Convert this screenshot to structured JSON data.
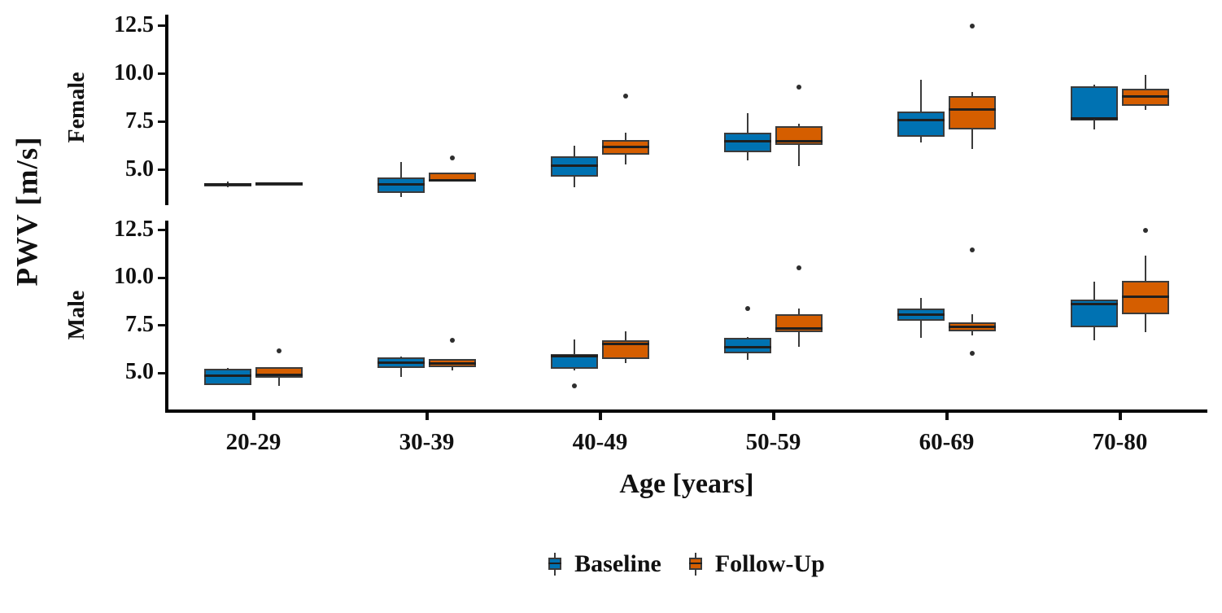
{
  "figure": {
    "y_axis_title": "PWV [m/s]",
    "x_axis_title": "Age [years]",
    "colors": {
      "baseline": "#0072B2",
      "followup": "#D55E00",
      "stroke": "#3b3b3b",
      "median": "#1f1f1f",
      "axis": "#000000",
      "outlier": "#2e2e2e"
    },
    "legend": [
      {
        "label": "Baseline",
        "color": "#0072B2"
      },
      {
        "label": "Follow-Up",
        "color": "#D55E00"
      }
    ]
  },
  "chart_data": {
    "type": "boxplot",
    "title": "",
    "xlabel": "Age [years]",
    "ylabel": "PWV [m/s]",
    "categories": [
      "20-29",
      "30-39",
      "40-49",
      "50-59",
      "60-69",
      "70-80"
    ],
    "series_names": [
      "Baseline",
      "Follow-Up"
    ],
    "y_ticks": [
      12.5,
      10.0,
      7.5,
      5.0
    ],
    "y_tick_labels": [
      "12.5",
      "10.0",
      "7.5",
      "5.0"
    ],
    "grid": false,
    "legend_position": "bottom",
    "facets": [
      {
        "label": "Female",
        "groups": [
          {
            "age": "20-29",
            "baseline": {
              "whisker_low": 4.1,
              "q1": 4.2,
              "median": 4.25,
              "q3": 4.3,
              "whisker_high": 4.4,
              "outliers": []
            },
            "followup": {
              "whisker_low": 4.25,
              "q1": 4.25,
              "median": 4.3,
              "q3": 4.35,
              "whisker_high": 4.35,
              "outliers": []
            }
          },
          {
            "age": "30-39",
            "baseline": {
              "whisker_low": 3.6,
              "q1": 3.8,
              "median": 4.25,
              "q3": 4.6,
              "whisker_high": 5.4,
              "outliers": []
            },
            "followup": {
              "whisker_low": 4.4,
              "q1": 4.4,
              "median": 4.45,
              "q3": 4.85,
              "whisker_high": 4.85,
              "outliers": [
                5.65
              ]
            }
          },
          {
            "age": "40-49",
            "baseline": {
              "whisker_low": 4.1,
              "q1": 4.65,
              "median": 5.25,
              "q3": 5.7,
              "whisker_high": 6.25,
              "outliers": []
            },
            "followup": {
              "whisker_low": 5.3,
              "q1": 5.8,
              "median": 6.2,
              "q3": 6.55,
              "whisker_high": 6.95,
              "outliers": [
                8.85
              ]
            }
          },
          {
            "age": "50-59",
            "baseline": {
              "whisker_low": 5.5,
              "q1": 5.95,
              "median": 6.5,
              "q3": 6.95,
              "whisker_high": 7.95,
              "outliers": []
            },
            "followup": {
              "whisker_low": 5.2,
              "q1": 6.3,
              "median": 6.5,
              "q3": 7.3,
              "whisker_high": 7.4,
              "outliers": [
                9.3
              ]
            }
          },
          {
            "age": "60-69",
            "baseline": {
              "whisker_low": 6.45,
              "q1": 6.75,
              "median": 7.6,
              "q3": 8.05,
              "whisker_high": 9.7,
              "outliers": []
            },
            "followup": {
              "whisker_low": 6.1,
              "q1": 7.1,
              "median": 8.15,
              "q3": 8.85,
              "whisker_high": 9.05,
              "outliers": [
                12.5
              ]
            }
          },
          {
            "age": "70-80",
            "baseline": {
              "whisker_low": 7.1,
              "q1": 7.6,
              "median": 7.7,
              "q3": 9.35,
              "whisker_high": 9.45,
              "outliers": []
            },
            "followup": {
              "whisker_low": 8.15,
              "q1": 8.35,
              "median": 8.85,
              "q3": 9.25,
              "whisker_high": 9.95,
              "outliers": []
            }
          }
        ]
      },
      {
        "label": "Male",
        "groups": [
          {
            "age": "20-29",
            "baseline": {
              "whisker_low": 4.35,
              "q1": 4.35,
              "median": 4.85,
              "q3": 5.2,
              "whisker_high": 5.25,
              "outliers": []
            },
            "followup": {
              "whisker_low": 4.3,
              "q1": 4.75,
              "median": 4.9,
              "q3": 5.3,
              "whisker_high": 5.3,
              "outliers": [
                6.15
              ]
            }
          },
          {
            "age": "30-39",
            "baseline": {
              "whisker_low": 4.8,
              "q1": 5.25,
              "median": 5.55,
              "q3": 5.8,
              "whisker_high": 5.85,
              "outliers": []
            },
            "followup": {
              "whisker_low": 5.15,
              "q1": 5.3,
              "median": 5.5,
              "q3": 5.75,
              "whisker_high": 5.75,
              "outliers": [
                6.7
              ]
            }
          },
          {
            "age": "40-49",
            "baseline": {
              "whisker_low": 5.15,
              "q1": 5.2,
              "median": 5.9,
              "q3": 6.0,
              "whisker_high": 6.75,
              "outliers": [
                4.3
              ]
            },
            "followup": {
              "whisker_low": 5.5,
              "q1": 5.75,
              "median": 6.5,
              "q3": 6.7,
              "whisker_high": 7.2,
              "outliers": []
            }
          },
          {
            "age": "50-59",
            "baseline": {
              "whisker_low": 5.7,
              "q1": 6.05,
              "median": 6.35,
              "q3": 6.85,
              "whisker_high": 6.9,
              "outliers": [
                8.4
              ]
            },
            "followup": {
              "whisker_low": 6.35,
              "q1": 7.15,
              "median": 7.35,
              "q3": 8.1,
              "whisker_high": 8.4,
              "outliers": [
                10.5
              ]
            }
          },
          {
            "age": "60-69",
            "baseline": {
              "whisker_low": 6.85,
              "q1": 7.75,
              "median": 8.05,
              "q3": 8.4,
              "whisker_high": 8.95,
              "outliers": []
            },
            "followup": {
              "whisker_low": 6.95,
              "q1": 7.2,
              "median": 7.4,
              "q3": 7.65,
              "whisker_high": 8.1,
              "outliers": [
                11.45,
                6.05
              ]
            }
          },
          {
            "age": "70-80",
            "baseline": {
              "whisker_low": 6.7,
              "q1": 7.4,
              "median": 8.6,
              "q3": 8.85,
              "whisker_high": 9.8,
              "outliers": []
            },
            "followup": {
              "whisker_low": 7.15,
              "q1": 8.1,
              "median": 9.0,
              "q3": 9.85,
              "whisker_high": 11.15,
              "outliers": [
                12.5
              ]
            }
          }
        ]
      }
    ]
  }
}
